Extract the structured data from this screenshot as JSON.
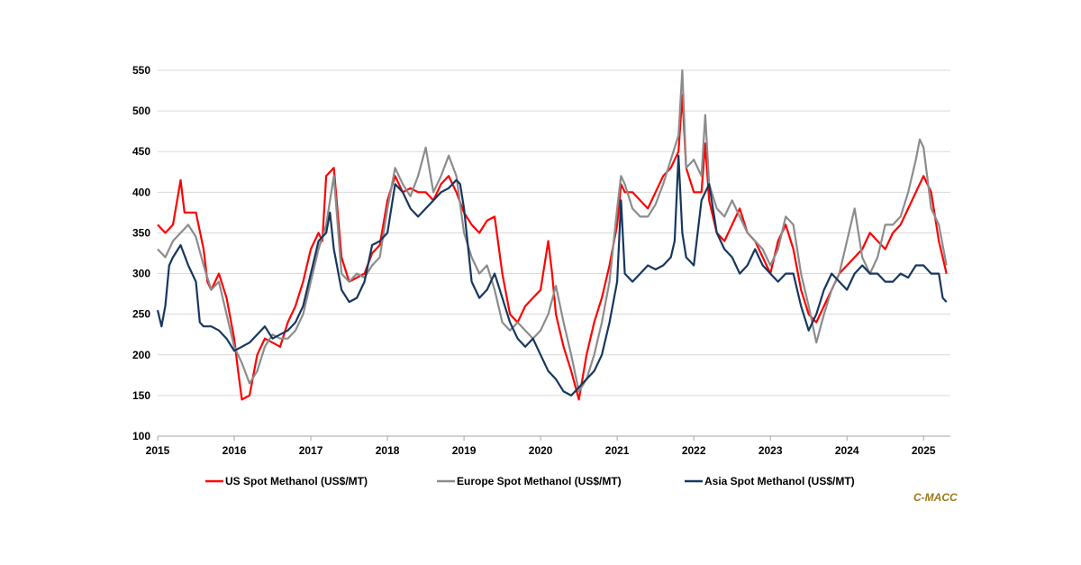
{
  "chart_data": {
    "type": "line",
    "title": "",
    "xlabel": "",
    "ylabel": "",
    "xlim": [
      2015,
      2025.35
    ],
    "ylim": [
      100,
      550
    ],
    "y_ticks": [
      100,
      150,
      200,
      250,
      300,
      350,
      400,
      450,
      500,
      550
    ],
    "x_ticks": [
      2015,
      2016,
      2017,
      2018,
      2019,
      2020,
      2021,
      2022,
      2023,
      2024,
      2025
    ],
    "x_tick_labels": [
      "2015",
      "2016",
      "2017",
      "2018",
      "2019",
      "2020",
      "2021",
      "2022",
      "2023",
      "2024",
      "2025"
    ],
    "grid": "horizontal",
    "legend": "bottom",
    "series": [
      {
        "name": "US Spot Methanol (US$/MT)",
        "color": "#ff0000",
        "x": [
          2015.0,
          2015.1,
          2015.2,
          2015.3,
          2015.35,
          2015.4,
          2015.5,
          2015.6,
          2015.65,
          2015.7,
          2015.8,
          2015.9,
          2016.0,
          2016.05,
          2016.1,
          2016.2,
          2016.3,
          2016.4,
          2016.5,
          2016.6,
          2016.7,
          2016.8,
          2016.9,
          2017.0,
          2017.1,
          2017.15,
          2017.2,
          2017.3,
          2017.4,
          2017.5,
          2017.6,
          2017.7,
          2017.8,
          2017.9,
          2018.0,
          2018.1,
          2018.2,
          2018.3,
          2018.4,
          2018.5,
          2018.6,
          2018.7,
          2018.8,
          2018.9,
          2019.0,
          2019.1,
          2019.2,
          2019.3,
          2019.4,
          2019.5,
          2019.6,
          2019.7,
          2019.8,
          2019.9,
          2020.0,
          2020.1,
          2020.15,
          2020.2,
          2020.3,
          2020.4,
          2020.5,
          2020.6,
          2020.7,
          2020.8,
          2020.9,
          2021.0,
          2021.05,
          2021.1,
          2021.2,
          2021.3,
          2021.4,
          2021.5,
          2021.6,
          2021.7,
          2021.75,
          2021.8,
          2021.85,
          2021.9,
          2022.0,
          2022.1,
          2022.15,
          2022.2,
          2022.3,
          2022.4,
          2022.5,
          2022.6,
          2022.7,
          2022.8,
          2022.9,
          2023.0,
          2023.1,
          2023.2,
          2023.3,
          2023.4,
          2023.5,
          2023.6,
          2023.7,
          2023.8,
          2023.9,
          2024.0,
          2024.1,
          2024.2,
          2024.3,
          2024.4,
          2024.5,
          2024.6,
          2024.7,
          2024.8,
          2024.9,
          2025.0,
          2025.1,
          2025.2,
          2025.3
        ],
        "y": [
          360,
          350,
          360,
          415,
          375,
          375,
          375,
          330,
          290,
          280,
          300,
          270,
          220,
          180,
          145,
          150,
          200,
          220,
          215,
          210,
          240,
          260,
          290,
          330,
          350,
          340,
          420,
          430,
          320,
          290,
          295,
          300,
          325,
          335,
          390,
          420,
          400,
          405,
          400,
          400,
          390,
          410,
          420,
          400,
          375,
          360,
          350,
          365,
          370,
          300,
          250,
          240,
          260,
          270,
          280,
          340,
          300,
          250,
          210,
          180,
          145,
          200,
          240,
          270,
          310,
          360,
          410,
          400,
          400,
          390,
          380,
          400,
          420,
          430,
          440,
          450,
          520,
          430,
          400,
          400,
          460,
          390,
          350,
          340,
          360,
          380,
          350,
          340,
          320,
          300,
          340,
          360,
          330,
          280,
          250,
          240,
          260,
          280,
          300,
          310,
          320,
          330,
          350,
          340,
          330,
          350,
          360,
          380,
          400,
          420,
          400,
          340,
          300
        ]
      },
      {
        "name": "Europe Spot Methanol (US$/MT)",
        "color": "#8c8c8c",
        "x": [
          2015.0,
          2015.1,
          2015.2,
          2015.3,
          2015.4,
          2015.5,
          2015.6,
          2015.7,
          2015.8,
          2015.9,
          2016.0,
          2016.1,
          2016.2,
          2016.3,
          2016.4,
          2016.5,
          2016.6,
          2016.7,
          2016.8,
          2016.9,
          2017.0,
          2017.1,
          2017.2,
          2017.3,
          2017.4,
          2017.5,
          2017.6,
          2017.7,
          2017.8,
          2017.9,
          2018.0,
          2018.1,
          2018.2,
          2018.3,
          2018.4,
          2018.5,
          2018.6,
          2018.7,
          2018.8,
          2018.9,
          2019.0,
          2019.1,
          2019.2,
          2019.3,
          2019.4,
          2019.5,
          2019.6,
          2019.7,
          2019.8,
          2019.9,
          2020.0,
          2020.1,
          2020.2,
          2020.3,
          2020.4,
          2020.5,
          2020.6,
          2020.7,
          2020.8,
          2020.9,
          2021.0,
          2021.05,
          2021.1,
          2021.2,
          2021.3,
          2021.4,
          2021.5,
          2021.6,
          2021.7,
          2021.8,
          2021.85,
          2021.9,
          2022.0,
          2022.1,
          2022.15,
          2022.2,
          2022.3,
          2022.4,
          2022.5,
          2022.6,
          2022.7,
          2022.8,
          2022.9,
          2023.0,
          2023.1,
          2023.2,
          2023.3,
          2023.4,
          2023.5,
          2023.6,
          2023.7,
          2023.8,
          2023.9,
          2024.0,
          2024.1,
          2024.2,
          2024.3,
          2024.4,
          2024.5,
          2024.6,
          2024.7,
          2024.8,
          2024.9,
          2024.95,
          2025.0,
          2025.1,
          2025.2,
          2025.3
        ],
        "y": [
          330,
          320,
          340,
          350,
          360,
          345,
          310,
          280,
          290,
          250,
          210,
          190,
          165,
          180,
          210,
          225,
          220,
          220,
          230,
          250,
          290,
          330,
          360,
          420,
          300,
          290,
          300,
          295,
          310,
          320,
          380,
          430,
          410,
          395,
          420,
          455,
          400,
          420,
          445,
          420,
          350,
          320,
          300,
          310,
          280,
          240,
          230,
          240,
          230,
          220,
          230,
          250,
          285,
          240,
          200,
          155,
          170,
          200,
          240,
          290,
          380,
          420,
          410,
          380,
          370,
          370,
          385,
          410,
          440,
          470,
          550,
          430,
          440,
          420,
          495,
          410,
          380,
          370,
          390,
          370,
          350,
          340,
          330,
          310,
          330,
          370,
          360,
          300,
          260,
          215,
          250,
          280,
          300,
          340,
          380,
          320,
          300,
          320,
          360,
          360,
          370,
          400,
          440,
          465,
          455,
          380,
          360,
          310
        ]
      },
      {
        "name": "Asia Spot Methanol (US$/MT)",
        "color": "#17375e",
        "x": [
          2015.0,
          2015.05,
          2015.1,
          2015.15,
          2015.2,
          2015.3,
          2015.4,
          2015.5,
          2015.55,
          2015.6,
          2015.7,
          2015.8,
          2015.9,
          2016.0,
          2016.1,
          2016.2,
          2016.3,
          2016.4,
          2016.5,
          2016.6,
          2016.7,
          2016.8,
          2016.9,
          2017.0,
          2017.1,
          2017.2,
          2017.25,
          2017.3,
          2017.4,
          2017.5,
          2017.6,
          2017.7,
          2017.8,
          2017.9,
          2018.0,
          2018.1,
          2018.2,
          2018.3,
          2018.4,
          2018.5,
          2018.6,
          2018.7,
          2018.8,
          2018.9,
          2018.95,
          2019.0,
          2019.1,
          2019.2,
          2019.3,
          2019.4,
          2019.5,
          2019.6,
          2019.7,
          2019.8,
          2019.9,
          2020.0,
          2020.1,
          2020.2,
          2020.3,
          2020.4,
          2020.5,
          2020.6,
          2020.7,
          2020.8,
          2020.9,
          2021.0,
          2021.05,
          2021.1,
          2021.2,
          2021.3,
          2021.4,
          2021.5,
          2021.6,
          2021.7,
          2021.75,
          2021.8,
          2021.85,
          2021.9,
          2022.0,
          2022.1,
          2022.2,
          2022.3,
          2022.4,
          2022.5,
          2022.6,
          2022.7,
          2022.8,
          2022.9,
          2023.0,
          2023.1,
          2023.2,
          2023.3,
          2023.4,
          2023.5,
          2023.6,
          2023.7,
          2023.8,
          2023.9,
          2024.0,
          2024.1,
          2024.2,
          2024.3,
          2024.4,
          2024.5,
          2024.6,
          2024.7,
          2024.8,
          2024.9,
          2025.0,
          2025.1,
          2025.2,
          2025.25,
          2025.3
        ],
        "y": [
          255,
          235,
          260,
          310,
          320,
          335,
          310,
          290,
          240,
          235,
          235,
          230,
          220,
          205,
          210,
          215,
          225,
          235,
          220,
          225,
          230,
          240,
          260,
          300,
          340,
          350,
          375,
          330,
          280,
          265,
          270,
          290,
          335,
          340,
          350,
          410,
          400,
          380,
          370,
          380,
          390,
          400,
          405,
          415,
          410,
          380,
          290,
          270,
          280,
          300,
          270,
          240,
          220,
          210,
          220,
          200,
          180,
          170,
          155,
          150,
          160,
          170,
          180,
          200,
          240,
          290,
          390,
          300,
          290,
          300,
          310,
          305,
          310,
          320,
          340,
          445,
          350,
          320,
          310,
          390,
          410,
          350,
          330,
          320,
          300,
          310,
          330,
          310,
          300,
          290,
          300,
          300,
          260,
          230,
          250,
          280,
          300,
          290,
          280,
          300,
          310,
          300,
          300,
          290,
          290,
          300,
          295,
          310,
          310,
          300,
          300,
          270,
          265
        ]
      }
    ]
  },
  "legend": {
    "items": [
      {
        "label": "US Spot Methanol (US$/MT)",
        "color": "#ff0000"
      },
      {
        "label": "Europe Spot Methanol (US$/MT)",
        "color": "#8c8c8c"
      },
      {
        "label": "Asia Spot Methanol (US$/MT)",
        "color": "#17375e"
      }
    ]
  },
  "source_label": "C-MACC"
}
